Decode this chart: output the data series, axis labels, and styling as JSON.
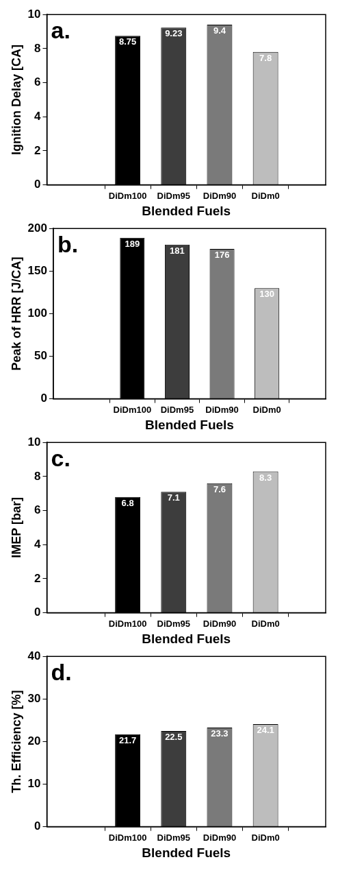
{
  "chart_data": [
    {
      "type": "bar",
      "xlabel": "Blended Fuels",
      "ylabel": "Ignition Delay [CA]",
      "annotations": [
        "a."
      ],
      "categories": [
        "DiDm100",
        "DiDm95",
        "DiDm90",
        "DiDm0"
      ],
      "values": [
        8.75,
        9.23,
        9.4,
        7.8
      ],
      "colors": [
        "#000000",
        "#3d3d3d",
        "#7a7a7a",
        "#bdbdbd"
      ],
      "ylim": [
        0,
        10
      ],
      "yticks": [
        0,
        2,
        4,
        6,
        8,
        10
      ],
      "grid": false,
      "data_labels": true
    },
    {
      "type": "bar",
      "xlabel": "Blended Fuels",
      "ylabel": "Peak of HRR [J/CA]",
      "annotations": [
        "b."
      ],
      "categories": [
        "DiDm100",
        "DiDm95",
        "DiDm90",
        "DiDm0"
      ],
      "values": [
        189,
        181,
        176,
        130
      ],
      "colors": [
        "#000000",
        "#3d3d3d",
        "#7a7a7a",
        "#bdbdbd"
      ],
      "ylim": [
        0,
        200
      ],
      "yticks": [
        0,
        50,
        100,
        150,
        200
      ],
      "grid": false,
      "data_labels": true
    },
    {
      "type": "bar",
      "xlabel": "Blended Fuels",
      "ylabel": "IMEP [bar]",
      "annotations": [
        "c."
      ],
      "categories": [
        "DiDm100",
        "DiDm95",
        "DiDm90",
        "DiDm0"
      ],
      "values": [
        6.8,
        7.1,
        7.6,
        8.3
      ],
      "colors": [
        "#000000",
        "#3d3d3d",
        "#7a7a7a",
        "#bdbdbd"
      ],
      "ylim": [
        0,
        10
      ],
      "yticks": [
        0,
        2,
        4,
        6,
        8,
        10
      ],
      "grid": false,
      "data_labels": true
    },
    {
      "type": "bar",
      "xlabel": "Blended Fuels",
      "ylabel": "Th. Efficiency [%]",
      "annotations": [
        "d."
      ],
      "categories": [
        "DiDm100",
        "DiDm95",
        "DiDm90",
        "DiDm0"
      ],
      "values": [
        21.7,
        22.5,
        23.3,
        24.1
      ],
      "colors": [
        "#000000",
        "#3d3d3d",
        "#7a7a7a",
        "#bdbdbd"
      ],
      "ylim": [
        0,
        40
      ],
      "yticks": [
        0,
        10,
        20,
        30,
        40
      ],
      "grid": false,
      "data_labels": true
    }
  ]
}
